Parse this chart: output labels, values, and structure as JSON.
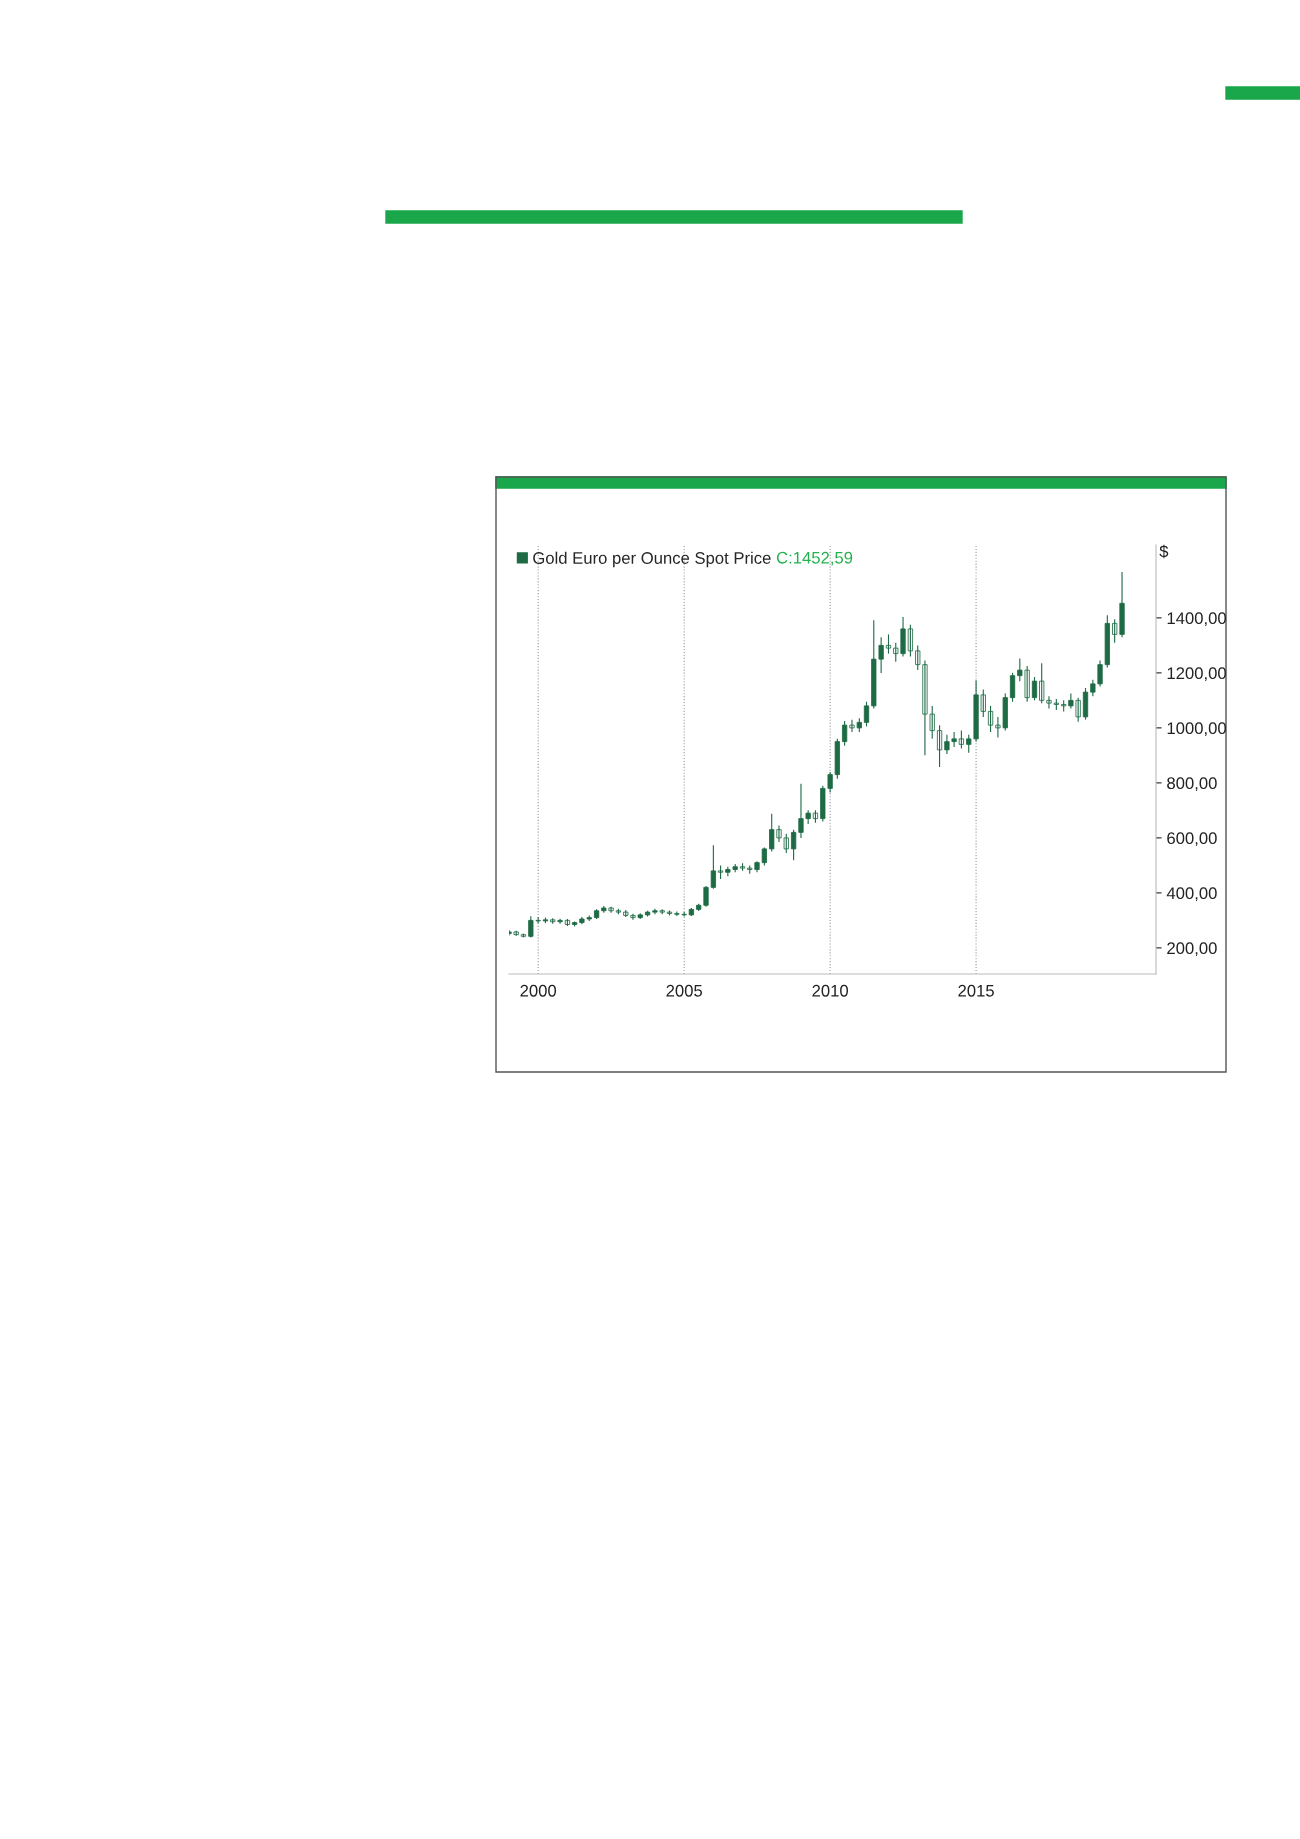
{
  "chart_data": {
    "type": "candlestick",
    "ylabel": "$",
    "legend": "top left",
    "grid": "x",
    "annotations": [
      "C:1452,59"
    ],
    "xlim": [
      "1999-01",
      "2021-03"
    ],
    "xticks": [
      {
        "value": "2000-01",
        "label": "2000"
      },
      {
        "value": "2005-01",
        "label": "2005"
      },
      {
        "value": "2010-01",
        "label": "2010"
      },
      {
        "value": "2015-01",
        "label": "2015"
      }
    ],
    "ylim": [
      105,
      1665
    ],
    "yticks": [
      {
        "value": 200,
        "label": "200,00"
      },
      {
        "value": 400,
        "label": "400,00"
      },
      {
        "value": 600,
        "label": "600,00"
      },
      {
        "value": 800,
        "label": "800,00"
      },
      {
        "value": 1000,
        "label": "1000,00"
      },
      {
        "value": 1200,
        "label": "1200,00"
      },
      {
        "value": 1400,
        "label": "1400,00"
      }
    ],
    "x": [
      "1999-01",
      "1999-04",
      "1999-07",
      "1999-10",
      "2000-01",
      "2000-04",
      "2000-07",
      "2000-10",
      "2001-01",
      "2001-04",
      "2001-07",
      "2001-10",
      "2002-01",
      "2002-04",
      "2002-07",
      "2002-10",
      "2003-01",
      "2003-04",
      "2003-07",
      "2003-10",
      "2004-01",
      "2004-04",
      "2004-07",
      "2004-10",
      "2005-01",
      "2005-04",
      "2005-07",
      "2005-10",
      "2006-01",
      "2006-04",
      "2006-07",
      "2006-10",
      "2007-01",
      "2007-04",
      "2007-07",
      "2007-10",
      "2008-01",
      "2008-04",
      "2008-07",
      "2008-10",
      "2009-01",
      "2009-04",
      "2009-07",
      "2009-10",
      "2010-01",
      "2010-04",
      "2010-07",
      "2010-10",
      "2011-01",
      "2011-04",
      "2011-07",
      "2011-10",
      "2012-01",
      "2012-04",
      "2012-07",
      "2012-10",
      "2013-01",
      "2013-04",
      "2013-07",
      "2013-10",
      "2014-01",
      "2014-04",
      "2014-07",
      "2014-10",
      "2015-01",
      "2015-04",
      "2015-07",
      "2015-10",
      "2016-01",
      "2016-04",
      "2016-07",
      "2016-10",
      "2017-01",
      "2017-04",
      "2017-07",
      "2017-10",
      "2018-01",
      "2018-04",
      "2018-07",
      "2018-10",
      "2019-01",
      "2019-04",
      "2019-07",
      "2019-10",
      "2020-01"
    ],
    "series": [
      {
        "name": "Gold Euro per Ounce Spot Price",
        "color": "#1e6b45",
        "ohlc": [
          [
            252,
            265,
            245,
            258
          ],
          [
            258,
            262,
            244,
            248
          ],
          [
            248,
            252,
            238,
            242
          ],
          [
            242,
            315,
            238,
            300
          ],
          [
            300,
            312,
            290,
            298
          ],
          [
            298,
            310,
            290,
            302
          ],
          [
            302,
            308,
            288,
            295
          ],
          [
            295,
            306,
            288,
            300
          ],
          [
            300,
            305,
            280,
            285
          ],
          [
            285,
            296,
            278,
            292
          ],
          [
            292,
            312,
            286,
            305
          ],
          [
            305,
            318,
            298,
            310
          ],
          [
            310,
            340,
            305,
            335
          ],
          [
            335,
            352,
            328,
            345
          ],
          [
            345,
            350,
            328,
            335
          ],
          [
            335,
            342,
            322,
            330
          ],
          [
            330,
            338,
            312,
            318
          ],
          [
            318,
            324,
            302,
            310
          ],
          [
            310,
            326,
            305,
            320
          ],
          [
            320,
            335,
            314,
            330
          ],
          [
            330,
            342,
            322,
            335
          ],
          [
            335,
            340,
            322,
            330
          ],
          [
            330,
            336,
            318,
            325
          ],
          [
            325,
            332,
            316,
            322
          ],
          [
            322,
            330,
            314,
            320
          ],
          [
            320,
            345,
            316,
            340
          ],
          [
            340,
            360,
            334,
            355
          ],
          [
            355,
            425,
            350,
            420
          ],
          [
            420,
            573,
            415,
            480
          ],
          [
            480,
            500,
            450,
            475
          ],
          [
            475,
            495,
            460,
            485
          ],
          [
            485,
            505,
            475,
            495
          ],
          [
            495,
            508,
            480,
            490
          ],
          [
            490,
            500,
            470,
            485
          ],
          [
            485,
            515,
            475,
            510
          ],
          [
            510,
            565,
            500,
            560
          ],
          [
            560,
            688,
            550,
            630
          ],
          [
            630,
            645,
            585,
            600
          ],
          [
            600,
            615,
            545,
            560
          ],
          [
            560,
            630,
            519,
            620
          ],
          [
            620,
            797,
            600,
            670
          ],
          [
            670,
            700,
            650,
            690
          ],
          [
            690,
            700,
            655,
            670
          ],
          [
            670,
            790,
            660,
            780
          ],
          [
            780,
            840,
            765,
            830
          ],
          [
            830,
            960,
            815,
            950
          ],
          [
            950,
            1025,
            935,
            1010
          ],
          [
            1010,
            1030,
            985,
            1000
          ],
          [
            1000,
            1035,
            985,
            1020
          ],
          [
            1020,
            1095,
            1005,
            1080
          ],
          [
            1080,
            1391,
            1070,
            1250
          ],
          [
            1250,
            1330,
            1200,
            1300
          ],
          [
            1300,
            1340,
            1270,
            1290
          ],
          [
            1290,
            1310,
            1240,
            1270
          ],
          [
            1270,
            1403,
            1260,
            1360
          ],
          [
            1360,
            1375,
            1260,
            1280
          ],
          [
            1280,
            1300,
            1210,
            1230
          ],
          [
            1230,
            1245,
            900,
            1050
          ],
          [
            1050,
            1080,
            960,
            990
          ],
          [
            990,
            1010,
            858,
            920
          ],
          [
            920,
            975,
            905,
            950
          ],
          [
            950,
            985,
            930,
            960
          ],
          [
            960,
            990,
            925,
            940
          ],
          [
            940,
            975,
            910,
            960
          ],
          [
            960,
            1173,
            950,
            1120
          ],
          [
            1120,
            1140,
            1040,
            1060
          ],
          [
            1060,
            1080,
            985,
            1010
          ],
          [
            1010,
            1040,
            965,
            1000
          ],
          [
            1000,
            1125,
            990,
            1110
          ],
          [
            1110,
            1200,
            1095,
            1190
          ],
          [
            1190,
            1252,
            1170,
            1210
          ],
          [
            1210,
            1225,
            1095,
            1110
          ],
          [
            1110,
            1185,
            1100,
            1170
          ],
          [
            1170,
            1235,
            1090,
            1100
          ],
          [
            1100,
            1115,
            1070,
            1090
          ],
          [
            1090,
            1105,
            1065,
            1085
          ],
          [
            1085,
            1100,
            1060,
            1080
          ],
          [
            1080,
            1125,
            1070,
            1100
          ],
          [
            1100,
            1110,
            1022,
            1040
          ],
          [
            1040,
            1145,
            1030,
            1130
          ],
          [
            1130,
            1175,
            1115,
            1160
          ],
          [
            1160,
            1245,
            1150,
            1230
          ],
          [
            1230,
            1410,
            1220,
            1380
          ],
          [
            1380,
            1395,
            1310,
            1340
          ],
          [
            1340,
            1567,
            1330,
            1453
          ]
        ]
      }
    ]
  }
}
